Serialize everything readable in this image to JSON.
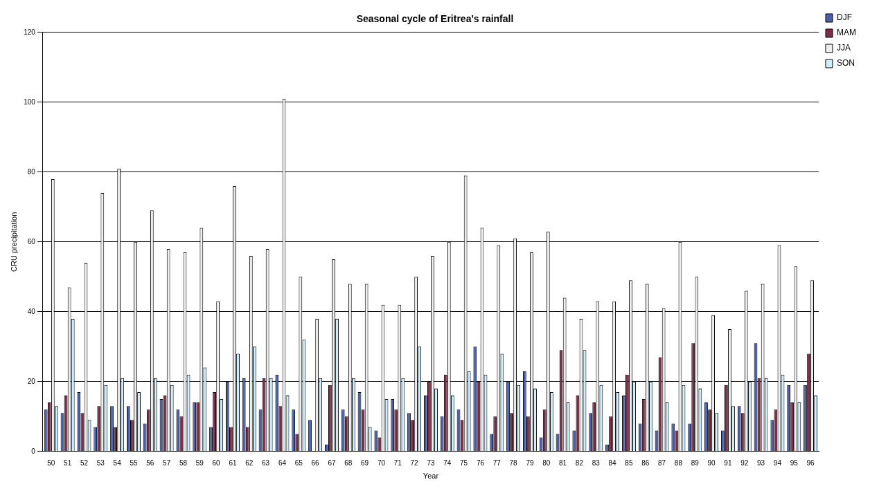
{
  "chart_data": {
    "type": "bar",
    "title": "Seasonal cycle of Eritrea's rainfall",
    "xlabel": "Year",
    "ylabel": "CRU precipitation",
    "categories": [
      "50",
      "51",
      "52",
      "53",
      "54",
      "55",
      "56",
      "57",
      "58",
      "59",
      "60",
      "61",
      "62",
      "63",
      "64",
      "65",
      "66",
      "67",
      "68",
      "69",
      "70",
      "71",
      "72",
      "73",
      "74",
      "75",
      "76",
      "77",
      "78",
      "79",
      "80",
      "81",
      "82",
      "83",
      "84",
      "85",
      "86",
      "87",
      "88",
      "89",
      "90",
      "91",
      "92",
      "93",
      "94",
      "95",
      "96"
    ],
    "series": [
      {
        "name": "DJF",
        "color": "#4a5fa8",
        "values": [
          12,
          11,
          17,
          7,
          13,
          13,
          8,
          15,
          12,
          14,
          7,
          20,
          21,
          12,
          22,
          12,
          9,
          2,
          12,
          17,
          6,
          15,
          11,
          16,
          10,
          12,
          30,
          5,
          20,
          23,
          4,
          5,
          6,
          11,
          2,
          16,
          8,
          6,
          8,
          8,
          14,
          6,
          13,
          31,
          9,
          19,
          19
        ]
      },
      {
        "name": "MAM",
        "color": "#7b2c4a",
        "values": [
          14,
          16,
          11,
          13,
          7,
          9,
          12,
          16,
          10,
          14,
          17,
          7,
          7,
          21,
          13,
          5,
          null,
          19,
          10,
          12,
          4,
          12,
          9,
          20,
          22,
          9,
          20,
          10,
          11,
          10,
          12,
          29,
          16,
          14,
          10,
          22,
          15,
          27,
          6,
          31,
          12,
          19,
          11,
          21,
          12,
          14,
          28
        ]
      },
      {
        "name": "JJA",
        "color": "#eeeeee",
        "values": [
          78,
          47,
          54,
          74,
          81,
          60,
          69,
          58,
          57,
          64,
          43,
          76,
          56,
          58,
          101,
          50,
          38,
          55,
          48,
          48,
          42,
          42,
          50,
          56,
          60,
          79,
          64,
          59,
          61,
          57,
          63,
          44,
          38,
          43,
          43,
          49,
          48,
          41,
          60,
          50,
          39,
          35,
          46,
          48,
          59,
          53,
          49
        ]
      },
      {
        "name": "SON",
        "color": "#cceeff",
        "values": [
          13,
          38,
          9,
          19,
          21,
          17,
          21,
          19,
          22,
          24,
          15,
          28,
          30,
          21,
          16,
          32,
          21,
          38,
          21,
          7,
          15,
          21,
          30,
          18,
          16,
          23,
          22,
          28,
          19,
          18,
          17,
          14,
          29,
          19,
          17,
          20,
          20,
          14,
          19,
          18,
          11,
          13,
          20,
          21,
          22,
          14,
          16
        ]
      }
    ],
    "ylim": [
      0,
      120
    ],
    "yticks": [
      0,
      20,
      40,
      60,
      80,
      100,
      120
    ],
    "grid": "y",
    "legend": "right"
  }
}
